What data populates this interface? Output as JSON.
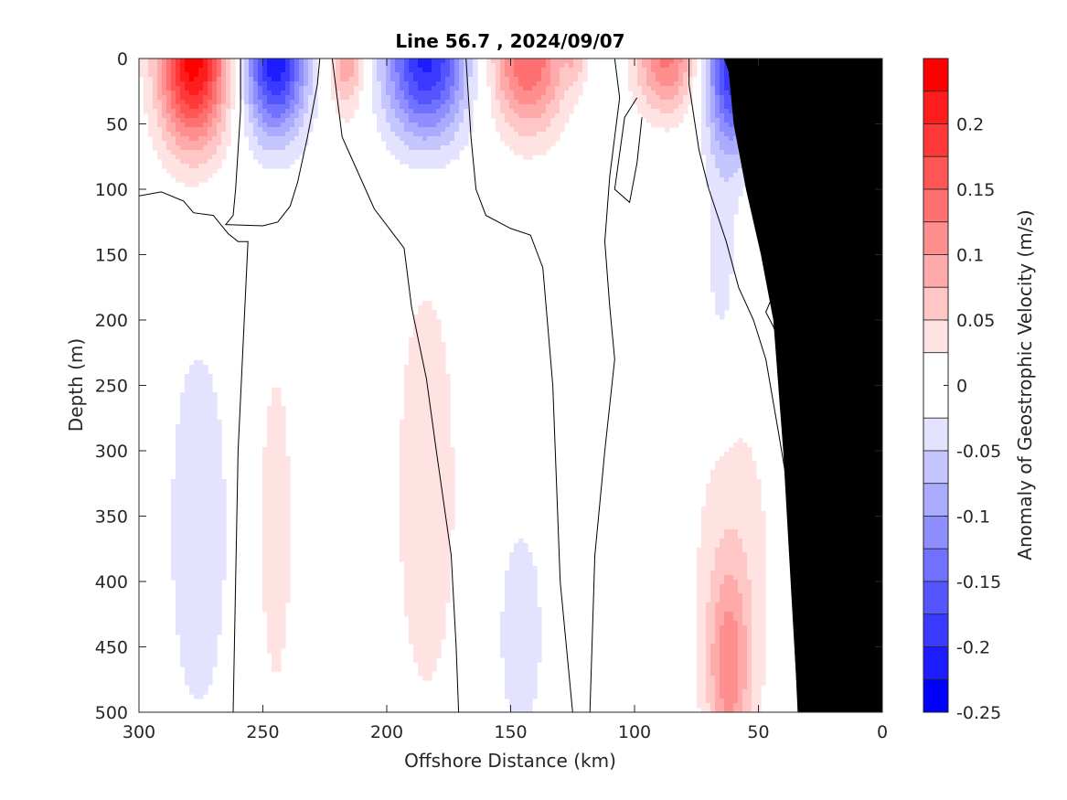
{
  "chart_data": {
    "type": "heatmap",
    "title": "Line 56.7 , 2024/09/07",
    "xlabel": "Offshore Distance (km)",
    "ylabel": "Depth (m)",
    "xlim": [
      300,
      0
    ],
    "ylim": [
      0,
      500
    ],
    "x_reversed": true,
    "y_reversed": true,
    "xticks": [
      300,
      250,
      200,
      150,
      100,
      50,
      0
    ],
    "yticks": [
      0,
      50,
      100,
      150,
      200,
      250,
      300,
      350,
      400,
      450,
      500
    ],
    "colorbar": {
      "label": "Anomaly of Geostrophic Velocity (m/s)",
      "ticks": [
        0.2,
        0.15,
        0.1,
        0.05,
        0,
        -0.05,
        -0.1,
        -0.15,
        -0.2,
        -0.25
      ],
      "tick_labels": [
        "0.2",
        "0.15",
        "0.1",
        "0.05",
        "0",
        "-0.05",
        "-0.1",
        "-0.15",
        "-0.2",
        "-0.25"
      ],
      "range": [
        -0.25,
        0.25
      ],
      "levels": [
        {
          "lo": 0.225,
          "hi": 0.25,
          "color": "#ff0000"
        },
        {
          "lo": 0.2,
          "hi": 0.225,
          "color": "#ff1c1c"
        },
        {
          "lo": 0.175,
          "hi": 0.2,
          "color": "#ff3939"
        },
        {
          "lo": 0.15,
          "hi": 0.175,
          "color": "#ff5555"
        },
        {
          "lo": 0.125,
          "hi": 0.15,
          "color": "#ff7171"
        },
        {
          "lo": 0.1,
          "hi": 0.125,
          "color": "#ff8e8e"
        },
        {
          "lo": 0.075,
          "hi": 0.1,
          "color": "#ffaaaa"
        },
        {
          "lo": 0.05,
          "hi": 0.075,
          "color": "#ffc6c6"
        },
        {
          "lo": 0.025,
          "hi": 0.05,
          "color": "#ffe3e3"
        },
        {
          "lo": -0.025,
          "hi": 0.025,
          "color": "#ffffff"
        },
        {
          "lo": -0.05,
          "hi": -0.025,
          "color": "#e3e3ff"
        },
        {
          "lo": -0.075,
          "hi": -0.05,
          "color": "#c6c6ff"
        },
        {
          "lo": -0.1,
          "hi": -0.075,
          "color": "#aaaaff"
        },
        {
          "lo": -0.125,
          "hi": -0.1,
          "color": "#8e8eff"
        },
        {
          "lo": -0.15,
          "hi": -0.125,
          "color": "#7171ff"
        },
        {
          "lo": -0.175,
          "hi": -0.15,
          "color": "#5555ff"
        },
        {
          "lo": -0.2,
          "hi": -0.175,
          "color": "#3939ff"
        },
        {
          "lo": -0.225,
          "hi": -0.2,
          "color": "#1c1cff"
        },
        {
          "lo": -0.25,
          "hi": -0.225,
          "color": "#0000ff"
        }
      ]
    },
    "features": [
      {
        "x": 278,
        "z": 0,
        "sx": 10,
        "sz": 48,
        "amp": 0.24
      },
      {
        "x": 245,
        "z": 0,
        "sx": 9,
        "sz": 42,
        "amp": -0.22
      },
      {
        "x": 216,
        "z": 0,
        "sx": 5,
        "sz": 30,
        "amp": 0.1
      },
      {
        "x": 184,
        "z": 0,
        "sx": 12,
        "sz": 45,
        "amp": -0.21
      },
      {
        "x": 143,
        "z": 0,
        "sx": 11,
        "sz": 40,
        "amp": 0.15
      },
      {
        "x": 124,
        "z": 0,
        "sx": 3,
        "sz": 15,
        "amp": 0.04
      },
      {
        "x": 87,
        "z": 0,
        "sx": 9,
        "sz": 30,
        "amp": 0.13
      },
      {
        "x": 60,
        "z": 0,
        "sx": 8,
        "sz": 48,
        "amp": -0.21
      },
      {
        "x": 22,
        "z": 0,
        "sx": 7,
        "sz": 40,
        "amp": -0.2
      },
      {
        "x": 2,
        "z": 0,
        "sx": 4,
        "sz": 55,
        "amp": 0.25
      },
      {
        "x": 65,
        "z": 160,
        "sx": 5,
        "sz": 65,
        "amp": -0.04
      },
      {
        "x": 276,
        "z": 360,
        "sx": 11,
        "sz": 135,
        "amp": -0.04
      },
      {
        "x": 245,
        "z": 360,
        "sx": 6,
        "sz": 115,
        "amp": 0.04
      },
      {
        "x": 184,
        "z": 330,
        "sx": 11,
        "sz": 150,
        "amp": 0.04
      },
      {
        "x": 146,
        "z": 440,
        "sx": 8,
        "sz": 75,
        "amp": -0.04
      },
      {
        "x": 62,
        "z": 470,
        "sx": 6,
        "sz": 55,
        "amp": 0.09
      },
      {
        "x": 60,
        "z": 390,
        "sx": 13,
        "sz": 110,
        "amp": 0.04
      }
    ],
    "zero_contours": [
      [
        [
          300,
          105
        ],
        [
          291,
          102
        ],
        [
          282,
          109
        ],
        [
          278,
          118
        ],
        [
          270,
          120
        ],
        [
          264,
          134
        ],
        [
          260,
          140
        ],
        [
          256,
          140
        ],
        [
          260,
          300
        ],
        [
          262,
          500
        ]
      ],
      [
        [
          259,
          0
        ],
        [
          259,
          40
        ],
        [
          261,
          100
        ],
        [
          262,
          120
        ],
        [
          265,
          127
        ],
        [
          250,
          128
        ],
        [
          244,
          125
        ],
        [
          239,
          113
        ],
        [
          236,
          95
        ],
        [
          232,
          60
        ],
        [
          228,
          20
        ],
        [
          227,
          0
        ]
      ],
      [
        [
          222,
          0
        ],
        [
          218,
          60
        ],
        [
          205,
          115
        ],
        [
          193,
          145
        ],
        [
          190,
          190
        ],
        [
          184,
          245
        ],
        [
          180,
          300
        ],
        [
          174,
          380
        ],
        [
          172,
          450
        ],
        [
          171,
          500
        ]
      ],
      [
        [
          168,
          0
        ],
        [
          166,
          60
        ],
        [
          164,
          100
        ],
        [
          160,
          120
        ],
        [
          150,
          130
        ],
        [
          142,
          135
        ],
        [
          137,
          160
        ],
        [
          133,
          250
        ],
        [
          130,
          400
        ],
        [
          125,
          500
        ]
      ],
      [
        [
          108,
          0
        ],
        [
          106,
          30
        ],
        [
          110,
          90
        ],
        [
          112,
          140
        ],
        [
          110,
          190
        ],
        [
          108,
          230
        ],
        [
          112,
          300
        ],
        [
          116,
          380
        ],
        [
          118,
          500
        ]
      ],
      [
        [
          99,
          30
        ],
        [
          104,
          45
        ],
        [
          108,
          100
        ],
        [
          102,
          110
        ],
        [
          99,
          80
        ],
        [
          97,
          45
        ]
      ],
      [
        [
          78,
          0
        ],
        [
          78,
          20
        ],
        [
          74,
          70
        ],
        [
          70,
          100
        ],
        [
          63,
          140
        ],
        [
          58,
          175
        ],
        [
          52,
          200
        ],
        [
          47,
          230
        ],
        [
          42,
          285
        ],
        [
          38,
          330
        ],
        [
          34,
          500
        ]
      ],
      [
        [
          42,
          10
        ],
        [
          41,
          30
        ],
        [
          40,
          60
        ],
        [
          38,
          90
        ],
        [
          37,
          110
        ],
        [
          40,
          140
        ],
        [
          42,
          170
        ],
        [
          45,
          185
        ],
        [
          47,
          194
        ],
        [
          44,
          205
        ],
        [
          42,
          215
        ]
      ],
      [
        [
          14,
          0
        ],
        [
          13,
          40
        ],
        [
          12,
          80
        ],
        [
          11,
          120
        ],
        [
          10,
          150
        ],
        [
          9,
          200
        ],
        [
          8,
          260
        ],
        [
          8,
          300
        ]
      ]
    ],
    "land": [
      [
        34,
        500
      ],
      [
        37,
        400
      ],
      [
        40,
        300
      ],
      [
        44,
        200
      ],
      [
        49,
        150
      ],
      [
        55,
        100
      ],
      [
        60,
        50
      ],
      [
        62,
        10
      ],
      [
        64,
        0
      ],
      [
        0,
        0
      ],
      [
        0,
        500
      ]
    ]
  }
}
